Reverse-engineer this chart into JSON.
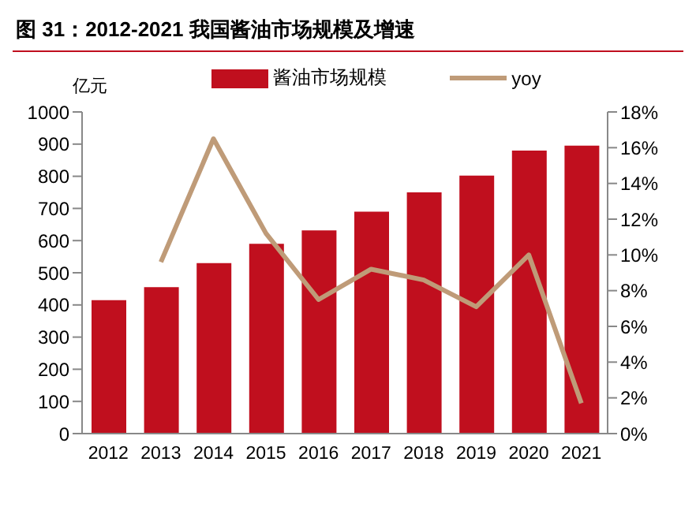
{
  "chart_data": {
    "type": "bar",
    "title": "图 31：2012-2021 我国酱油市场规模及增速",
    "ylabel": "亿元",
    "categories": [
      "2012",
      "2013",
      "2014",
      "2015",
      "2016",
      "2017",
      "2018",
      "2019",
      "2020",
      "2021"
    ],
    "series": [
      {
        "name": "酱油市场规模",
        "color": "#c00f1e",
        "values": [
          415,
          455,
          530,
          590,
          632,
          690,
          750,
          802,
          880,
          895
        ]
      },
      {
        "name": "yoy",
        "type": "line",
        "axis": "y2",
        "color": "#bf9b78",
        "values": [
          null,
          9.6,
          16.5,
          11.2,
          7.5,
          9.2,
          8.6,
          7.1,
          10,
          1.7
        ]
      }
    ],
    "ylim": [
      0,
      1000
    ],
    "yticks": [
      0,
      100,
      200,
      300,
      400,
      500,
      600,
      700,
      800,
      900,
      1000
    ],
    "y2lim": [
      0,
      18
    ],
    "y2ticks": [
      {
        "value": 0,
        "label": "0%"
      },
      {
        "value": 2,
        "label": "2%"
      },
      {
        "value": 4,
        "label": "4%"
      },
      {
        "value": 6,
        "label": "6%"
      },
      {
        "value": 8,
        "label": "8%"
      },
      {
        "value": 10,
        "label": "10%"
      },
      {
        "value": 12,
        "label": "12%"
      },
      {
        "value": 14,
        "label": "14%"
      },
      {
        "value": 16,
        "label": "16%"
      },
      {
        "value": 18,
        "label": "18%"
      }
    ],
    "legend": "top",
    "grid": false,
    "marker": "none"
  }
}
